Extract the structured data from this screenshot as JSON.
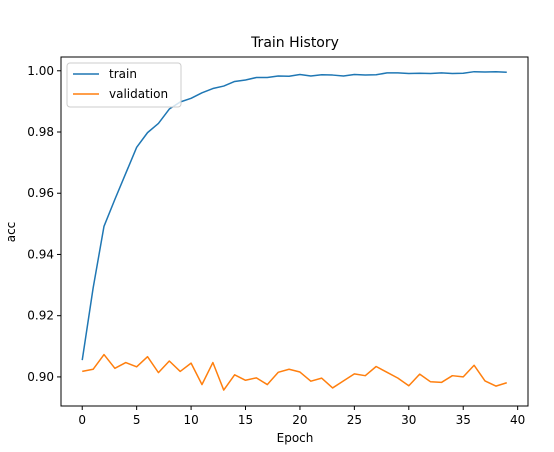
{
  "chart_data": {
    "type": "line",
    "title": "Train History",
    "xlabel": "Epoch",
    "ylabel": "acc",
    "xlim": [
      -1.95,
      40.95
    ],
    "ylim": [
      0.8905,
      1.0045
    ],
    "xticks": [
      0,
      5,
      10,
      15,
      20,
      25,
      30,
      35,
      40
    ],
    "yticks": [
      0.9,
      0.92,
      0.94,
      0.96,
      0.98,
      1.0
    ],
    "ytick_labels": [
      "0.90",
      "0.92",
      "0.94",
      "0.96",
      "0.98",
      "1.00"
    ],
    "grid": false,
    "legend_position": "top-left",
    "x": [
      0,
      1,
      2,
      3,
      4,
      5,
      6,
      7,
      8,
      9,
      10,
      11,
      12,
      13,
      14,
      15,
      16,
      17,
      18,
      19,
      20,
      21,
      22,
      23,
      24,
      25,
      26,
      27,
      28,
      29,
      30,
      31,
      32,
      33,
      34,
      35,
      36,
      37,
      38,
      39
    ],
    "series": [
      {
        "name": "train",
        "color": "#1f77b4",
        "values": [
          0.9055,
          0.929,
          0.9492,
          0.958,
          0.9665,
          0.975,
          0.9798,
          0.9828,
          0.9875,
          0.9898,
          0.991,
          0.9928,
          0.9942,
          0.995,
          0.9965,
          0.997,
          0.9978,
          0.9978,
          0.9983,
          0.9982,
          0.9988,
          0.9983,
          0.9987,
          0.9986,
          0.9983,
          0.9988,
          0.9986,
          0.9987,
          0.9993,
          0.9993,
          0.9991,
          0.9992,
          0.9991,
          0.9993,
          0.9991,
          0.9992,
          0.9997,
          0.9996,
          0.9997,
          0.9995
        ]
      },
      {
        "name": "validation",
        "color": "#ff7f0e",
        "values": [
          0.9018,
          0.9025,
          0.9073,
          0.9028,
          0.9047,
          0.9033,
          0.9066,
          0.9014,
          0.9052,
          0.9018,
          0.9045,
          0.8975,
          0.9047,
          0.8957,
          0.9007,
          0.8989,
          0.8997,
          0.8975,
          0.9015,
          0.9025,
          0.9016,
          0.8986,
          0.8996,
          0.8964,
          0.8987,
          0.901,
          0.9004,
          0.9034,
          0.9015,
          0.8996,
          0.8971,
          0.9009,
          0.8984,
          0.8982,
          0.9004,
          0.9,
          0.9038,
          0.8987,
          0.897,
          0.8981
        ]
      }
    ]
  }
}
